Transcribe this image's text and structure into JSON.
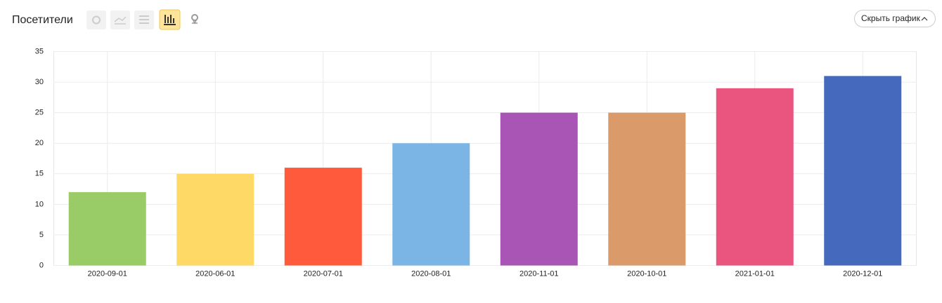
{
  "chart_data": {
    "type": "bar",
    "title": "Посетители",
    "categories": [
      "2020-09-01",
      "2020-06-01",
      "2020-07-01",
      "2020-08-01",
      "2020-11-01",
      "2020-10-01",
      "2021-01-01",
      "2020-12-01"
    ],
    "values": [
      12,
      15,
      16,
      20,
      25,
      25,
      29,
      31
    ],
    "colors": [
      "#99cc66",
      "#ffd966",
      "#ff5a3c",
      "#7ab5e6",
      "#a855b5",
      "#da9a6a",
      "#ea5580",
      "#4569bd"
    ],
    "ylim": [
      0,
      35
    ],
    "yticks": [
      0,
      5,
      10,
      15,
      20,
      25,
      30,
      35
    ],
    "grid": true
  },
  "ui": {
    "hide_button": "Скрыть график"
  }
}
